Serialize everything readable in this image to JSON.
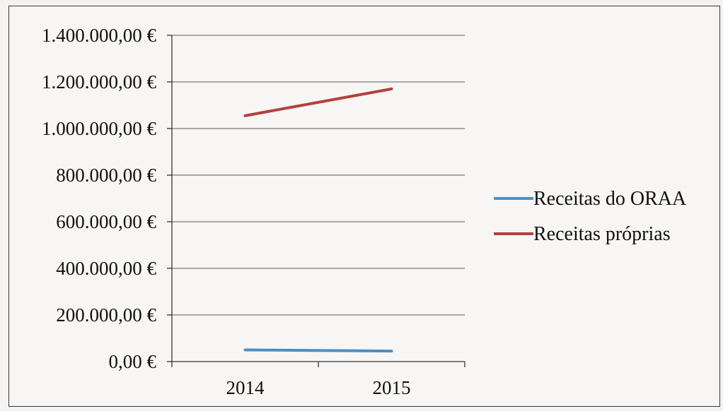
{
  "chart_data": {
    "type": "line",
    "title": "",
    "xlabel": "",
    "ylabel": "",
    "categories": [
      "2014",
      "2015"
    ],
    "ylim": [
      0,
      1400000
    ],
    "y_tick_values": [
      0,
      200000,
      400000,
      600000,
      800000,
      1000000,
      1200000,
      1400000
    ],
    "y_tick_labels": [
      "0,00 €",
      "200.000,00 €",
      "400.000,00 €",
      "600.000,00 €",
      "800.000,00 €",
      "1.000.000,00 €",
      "1.200.000,00 €",
      "1.400.000,00 €"
    ],
    "grid": true,
    "legend_position": "right",
    "series": [
      {
        "name": "Receitas do ORAA",
        "color": "#4a90c2",
        "values": [
          50000,
          45000
        ]
      },
      {
        "name": "Receitas próprias",
        "color": "#b5403d",
        "values": [
          1055000,
          1170000
        ]
      }
    ]
  }
}
